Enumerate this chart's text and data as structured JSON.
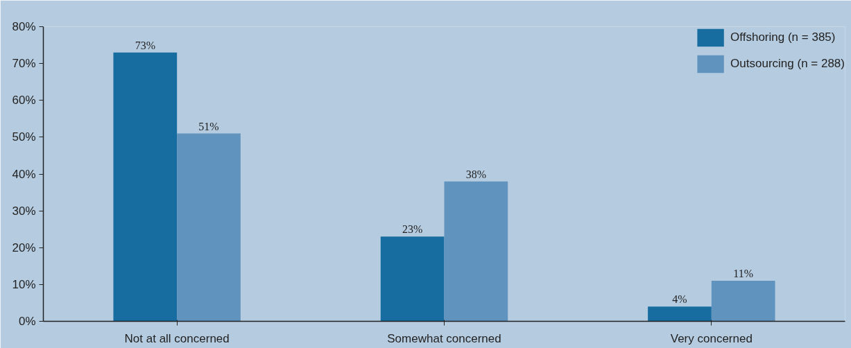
{
  "chart_data": {
    "type": "bar",
    "categories": [
      "Not at all concerned",
      "Somewhat concerned",
      "Very concerned"
    ],
    "series": [
      {
        "name": "Offshoring (n = 385)",
        "color": "#176ca0",
        "values": [
          73,
          23,
          4
        ],
        "value_labels": [
          "73%",
          "23%",
          "4%"
        ]
      },
      {
        "name": "Outsourcing (n = 288)",
        "color": "#6093bd",
        "values": [
          51,
          38,
          11
        ],
        "value_labels": [
          "51%",
          "38%",
          "11%"
        ]
      }
    ],
    "ylim": [
      0,
      80
    ],
    "yticks": [
      {
        "value": 0,
        "label": "0%"
      },
      {
        "value": 10,
        "label": "10%"
      },
      {
        "value": 20,
        "label": "20%"
      },
      {
        "value": 30,
        "label": "30%"
      },
      {
        "value": 40,
        "label": "40%"
      },
      {
        "value": 50,
        "label": "50%"
      },
      {
        "value": 60,
        "label": "60%"
      },
      {
        "value": 70,
        "label": "70%"
      },
      {
        "value": 80,
        "label": "80%"
      }
    ],
    "grid": false,
    "legend": "top right"
  }
}
